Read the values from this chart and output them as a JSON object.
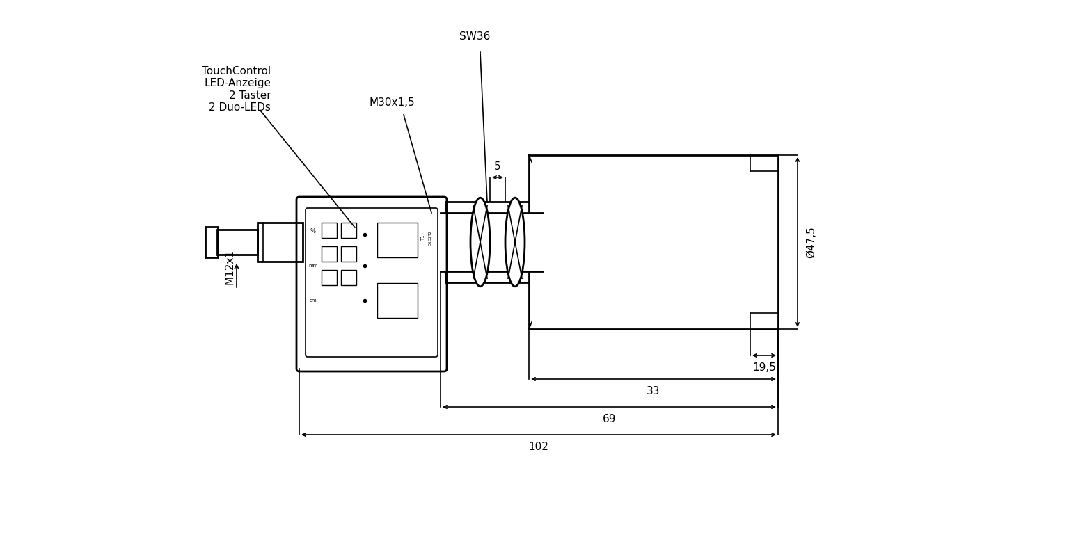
{
  "bg_color": "#ffffff",
  "line_color": "#000000",
  "text_color": "#000000",
  "annotations": {
    "TouchControl": "TouchControl\nLED-Anzeige\n2 Taster\n2 Duo-LEDs",
    "SW36": "SW36",
    "M30x15": "M30x1,5",
    "M12x1": "M12x1",
    "dim_5": "5",
    "dim_475": "Ø47,5",
    "dim_195": "19,5",
    "dim_33": "33",
    "dim_69": "69",
    "dim_102": "102"
  },
  "figsize": [
    15.36,
    7.95
  ],
  "dpi": 100
}
